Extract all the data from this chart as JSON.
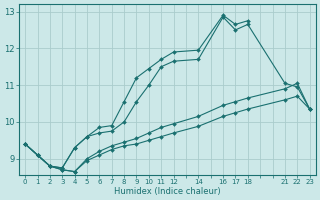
{
  "xlabel": "Humidex (Indice chaleur)",
  "xlim": [
    -0.5,
    23.5
  ],
  "ylim": [
    8.55,
    13.2
  ],
  "yticks": [
    9,
    10,
    11,
    12,
    13
  ],
  "bg_color": "#cce8e8",
  "grid_color": "#aacccc",
  "line_color": "#1a7070",
  "lines": [
    {
      "x": [
        0,
        1,
        2,
        3,
        4,
        5,
        6,
        7,
        8,
        9,
        10,
        11,
        12,
        14,
        16,
        17,
        18
      ],
      "y": [
        9.4,
        9.1,
        8.8,
        8.75,
        9.3,
        9.6,
        9.85,
        9.9,
        10.55,
        11.2,
        11.45,
        11.7,
        11.9,
        11.95,
        12.9,
        12.65,
        12.75
      ]
    },
    {
      "x": [
        0,
        1,
        2,
        3,
        4,
        5,
        6,
        7,
        8,
        9,
        10,
        11,
        12,
        14,
        16,
        17,
        18,
        21,
        22,
        23
      ],
      "y": [
        9.4,
        9.1,
        8.8,
        8.75,
        9.3,
        9.6,
        9.7,
        9.75,
        10.0,
        10.55,
        11.0,
        11.5,
        11.65,
        11.7,
        12.85,
        12.5,
        12.65,
        11.05,
        10.95,
        10.35
      ]
    },
    {
      "x": [
        0,
        1,
        2,
        3,
        4,
        5,
        6,
        7,
        8,
        9,
        10,
        11,
        12,
        14,
        16,
        17,
        18,
        21,
        22,
        23
      ],
      "y": [
        9.4,
        9.1,
        8.8,
        8.7,
        8.65,
        9.0,
        9.2,
        9.35,
        9.45,
        9.55,
        9.7,
        9.85,
        9.95,
        10.15,
        10.45,
        10.55,
        10.65,
        10.9,
        11.05,
        10.35
      ]
    },
    {
      "x": [
        0,
        1,
        2,
        3,
        4,
        5,
        6,
        7,
        8,
        9,
        10,
        11,
        12,
        14,
        16,
        17,
        18,
        21,
        22,
        23
      ],
      "y": [
        9.4,
        9.1,
        8.8,
        8.7,
        8.65,
        8.95,
        9.1,
        9.25,
        9.35,
        9.4,
        9.5,
        9.6,
        9.7,
        9.88,
        10.15,
        10.25,
        10.35,
        10.6,
        10.7,
        10.35
      ]
    }
  ]
}
